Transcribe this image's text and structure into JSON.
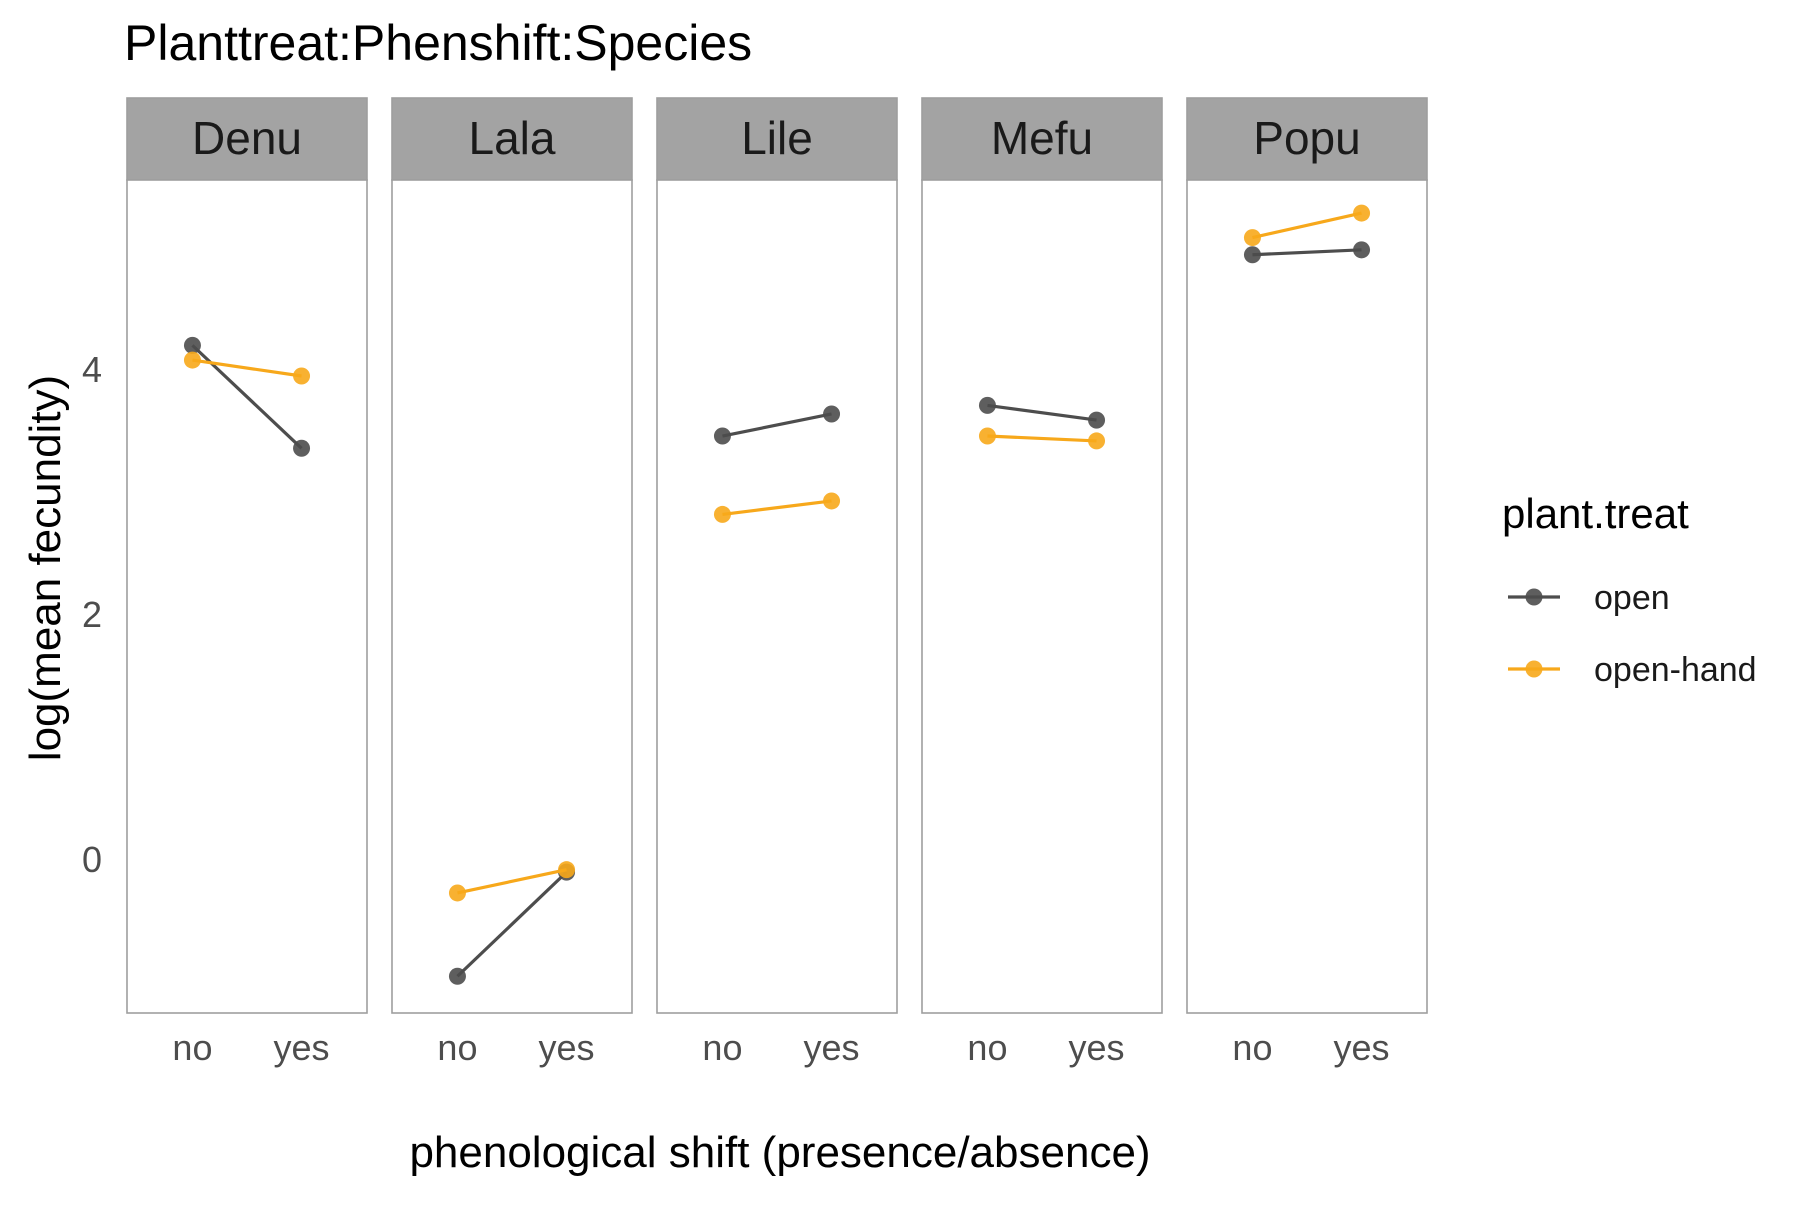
{
  "chart_data": {
    "type": "line",
    "title": "Planttreat:Phenshift:Species",
    "xlabel": "phenological shift (presence/absence)",
    "ylabel": "log(mean fecundity)",
    "facets": [
      "Denu",
      "Lala",
      "Lile",
      "Mefu",
      "Popu"
    ],
    "categories": [
      "no",
      "yes"
    ],
    "ylim": [
      -1.25,
      5.55
    ],
    "yticks": [
      0,
      2,
      4
    ],
    "yminor": [
      -1,
      1,
      3,
      5
    ],
    "grid": true,
    "legend": {
      "title": "plant.treat",
      "placement": "right"
    },
    "series": [
      {
        "name": "open",
        "color": "#4d4d4d",
        "values": {
          "Denu": [
            4.2,
            3.36
          ],
          "Lala": [
            -0.95,
            -0.1
          ],
          "Lile": [
            3.46,
            3.64
          ],
          "Mefu": [
            3.71,
            3.59
          ],
          "Popu": [
            4.94,
            4.98
          ]
        }
      },
      {
        "name": "open-hand",
        "color": "#f7a81b",
        "values": {
          "Denu": [
            4.08,
            3.95
          ],
          "Lala": [
            -0.27,
            -0.08
          ],
          "Lile": [
            2.82,
            2.93
          ],
          "Mefu": [
            3.46,
            3.42
          ],
          "Popu": [
            5.08,
            5.28
          ]
        }
      }
    ]
  }
}
